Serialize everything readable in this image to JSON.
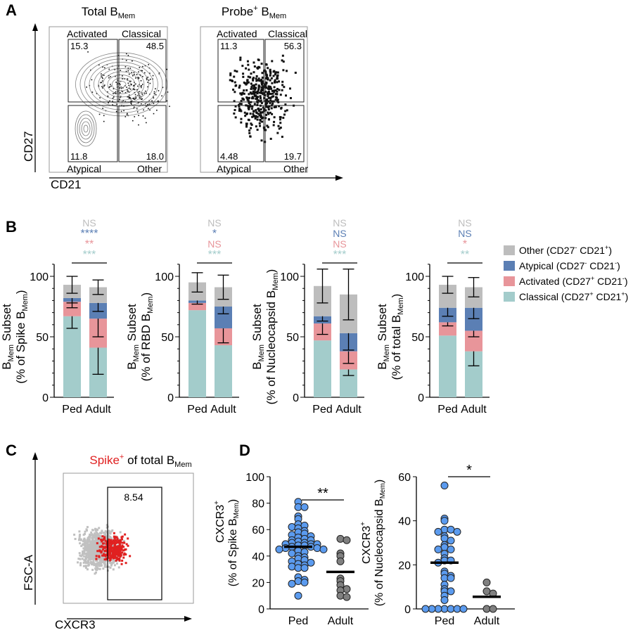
{
  "panel_labels": [
    "A",
    "B",
    "C",
    "D"
  ],
  "panel_a": {
    "plots": [
      {
        "title": "Total B",
        "title_sub": "Mem",
        "gates": {
          "activated": "15.3",
          "classical": "48.5",
          "atypical": "11.8",
          "other": "18.0"
        },
        "style": "contour"
      },
      {
        "title": "Probe",
        "title_sup": "+",
        "title_post": " B",
        "title_sub": "Mem",
        "gates": {
          "activated": "11.3",
          "classical": "56.3",
          "atypical": "4.48",
          "other": "19.7"
        },
        "style": "dot"
      }
    ],
    "gate_names": {
      "activated": "Activated",
      "classical": "Classical",
      "atypical": "Atypical",
      "other": "Other"
    },
    "y_axis": "CD27",
    "x_axis": "CD21"
  },
  "chart_data": [
    {
      "type": "bar",
      "stacked": true,
      "panel": "B",
      "categories": [
        "Ped",
        "Adult"
      ],
      "ylabel_main": "B",
      "ylabel_sub": "Mem",
      "ylabel_post": " Subset",
      "ylabel2": "(% of Spike B",
      "ylabel2_sub": "Mem",
      "ylabel2_post": ")",
      "ylim": [
        0,
        110
      ],
      "yticks": [
        0,
        50,
        100
      ],
      "series": [
        {
          "name": "Classical",
          "values": [
            67,
            41
          ],
          "sd": [
            10,
            22
          ]
        },
        {
          "name": "Activated",
          "values": [
            12,
            24
          ],
          "sd": [
            5,
            15
          ]
        },
        {
          "name": "Atypical",
          "values": [
            3,
            13
          ],
          "sd": [
            4,
            7
          ]
        },
        {
          "name": "Other",
          "values": [
            11,
            13
          ],
          "sd": [
            7,
            6
          ]
        }
      ],
      "significance": [
        {
          "text": "NS",
          "series": "Other"
        },
        {
          "text": "****",
          "series": "Atypical"
        },
        {
          "text": "**",
          "series": "Activated"
        },
        {
          "text": "***",
          "series": "Classical"
        }
      ]
    },
    {
      "type": "bar",
      "stacked": true,
      "panel": "B",
      "categories": [
        "Ped",
        "Adult"
      ],
      "ylabel_main": "B",
      "ylabel_sub": "Mem",
      "ylabel_post": " Subset",
      "ylabel2": "(% of RBD B",
      "ylabel2_sub": "Mem",
      "ylabel2_post": ")",
      "ylim": [
        0,
        110
      ],
      "yticks": [
        0,
        50,
        100
      ],
      "series": [
        {
          "name": "Classical",
          "values": [
            72,
            43
          ],
          "sd": [
            0,
            0
          ]
        },
        {
          "name": "Activated",
          "values": [
            6,
            14
          ],
          "sd": [
            0,
            12
          ]
        },
        {
          "name": "Atypical",
          "values": [
            2,
            18
          ],
          "sd": [
            3,
            6
          ]
        },
        {
          "name": "Other",
          "values": [
            15,
            16
          ],
          "sd": [
            8,
            10
          ]
        }
      ],
      "significance": [
        {
          "text": "NS",
          "series": "Other"
        },
        {
          "text": "*",
          "series": "Atypical"
        },
        {
          "text": "NS",
          "series": "Activated"
        },
        {
          "text": "***",
          "series": "Classical"
        }
      ]
    },
    {
      "type": "bar",
      "stacked": true,
      "panel": "B",
      "categories": [
        "Ped",
        "Adult"
      ],
      "ylabel_main": "B",
      "ylabel_sub": "Mem",
      "ylabel_post": " Subset",
      "ylabel2": "(% of Nucleocapsid B",
      "ylabel2_sub": "Mem",
      "ylabel2_post": ")",
      "ylim": [
        0,
        110
      ],
      "yticks": [
        0,
        50,
        100
      ],
      "series": [
        {
          "name": "Classical",
          "values": [
            47,
            23
          ],
          "sd": [
            0,
            5
          ]
        },
        {
          "name": "Activated",
          "values": [
            14,
            15
          ],
          "sd": [
            9,
            10
          ]
        },
        {
          "name": "Atypical",
          "values": [
            6,
            15
          ],
          "sd": [
            4,
            14
          ]
        },
        {
          "name": "Other",
          "values": [
            25,
            32
          ],
          "sd": [
            14,
            21
          ]
        }
      ],
      "significance": [
        {
          "text": "NS",
          "series": "Other"
        },
        {
          "text": "NS",
          "series": "Atypical"
        },
        {
          "text": "NS",
          "series": "Activated"
        },
        {
          "text": "***",
          "series": "Classical"
        }
      ]
    },
    {
      "type": "bar",
      "stacked": true,
      "panel": "B",
      "categories": [
        "Ped",
        "Adult"
      ],
      "ylabel_main": "B",
      "ylabel_sub": "Mem",
      "ylabel_post": " Subset",
      "ylabel2": "(% of total B",
      "ylabel2_sub": "Mem",
      "ylabel2_post": ")",
      "ylim": [
        0,
        110
      ],
      "yticks": [
        0,
        50,
        100
      ],
      "series": [
        {
          "name": "Classical",
          "values": [
            51,
            38
          ],
          "sd": [
            0,
            12
          ]
        },
        {
          "name": "Activated",
          "values": [
            11,
            17
          ],
          "sd": [
            3,
            5
          ]
        },
        {
          "name": "Atypical",
          "values": [
            12,
            19
          ],
          "sd": [
            7,
            9
          ]
        },
        {
          "name": "Other",
          "values": [
            19,
            17
          ],
          "sd": [
            7,
            8
          ]
        }
      ],
      "significance": [
        {
          "text": "NS",
          "series": "Other"
        },
        {
          "text": "NS",
          "series": "Atypical"
        },
        {
          "text": "*",
          "series": "Activated"
        },
        {
          "text": "**",
          "series": "Classical"
        }
      ]
    },
    {
      "type": "scatter",
      "panel": "D",
      "categories": [
        "Ped",
        "Adult"
      ],
      "ylabel_main": "CXCR3",
      "ylabel_sup": "+",
      "ylabel2": "(% of Spike B",
      "ylabel2_sub": "Mem",
      "ylabel2_post": ")",
      "ylim": [
        0,
        100
      ],
      "yticks": [
        0,
        20,
        40,
        60,
        80,
        100
      ],
      "groups": [
        {
          "name": "Ped",
          "color": "#5b9bef",
          "mean": 47,
          "values": [
            81,
            77,
            77,
            70,
            68,
            64,
            63,
            62,
            61,
            59,
            58,
            57,
            56,
            55,
            54,
            53,
            52,
            52,
            51,
            50,
            50,
            49,
            49,
            49,
            48,
            48,
            47,
            47,
            46,
            46,
            45,
            45,
            44,
            43,
            42,
            40,
            39,
            38,
            37,
            36,
            35,
            34,
            33,
            32,
            31,
            31,
            24,
            22,
            21,
            20,
            19,
            10
          ]
        },
        {
          "name": "Adult",
          "color": "#808080",
          "mean": 28,
          "values": [
            53,
            52,
            42,
            40,
            36,
            23,
            21,
            18,
            15,
            14,
            10,
            9
          ]
        }
      ],
      "significance": "**"
    },
    {
      "type": "scatter",
      "panel": "D",
      "categories": [
        "Ped",
        "Adult"
      ],
      "ylabel_main": "CXCR3",
      "ylabel_sup": "+",
      "ylabel2": "(% of Nucleocapsid B",
      "ylabel2_sub": "Mem",
      "ylabel2_post": ")",
      "ylim": [
        0,
        60
      ],
      "yticks": [
        0,
        20,
        40,
        60
      ],
      "groups": [
        {
          "name": "Ped",
          "color": "#5b9bef",
          "mean": 21,
          "values": [
            56,
            41,
            40,
            36,
            36,
            35,
            35,
            33,
            32,
            31,
            29,
            28,
            27,
            27,
            25,
            23,
            22,
            22,
            21,
            17,
            16,
            15,
            14,
            14,
            11,
            9,
            8,
            8,
            6,
            4,
            0,
            0,
            0,
            0,
            0,
            0,
            0
          ]
        },
        {
          "name": "Adult",
          "color": "#808080",
          "mean": 5.5,
          "values": [
            12,
            8,
            7,
            0,
            0
          ]
        }
      ],
      "significance": "*"
    }
  ],
  "legend": [
    {
      "label": "Other (CD27",
      "sup1": "-",
      "mid": " CD21",
      "sup2": "+",
      "end": ")",
      "color": "#bdbdbd"
    },
    {
      "label": "Atypical (CD27",
      "sup1": "-",
      "mid": " CD21",
      "sup2": "-",
      "end": ")",
      "color": "#5b7fb4"
    },
    {
      "label": "Activated (CD27",
      "sup1": "+",
      "mid": " CD21",
      "sup2": "-",
      "end": ")",
      "color": "#e8959a"
    },
    {
      "label": "Classical (CD27",
      "sup1": "+",
      "mid": " CD21",
      "sup2": "+",
      "end": ")",
      "color": "#a3cccb"
    }
  ],
  "panel_c": {
    "title": "Spike",
    "title_sup": "+",
    "title_post": " of total B",
    "title_sub": "Mem",
    "gate_value": "8.54",
    "y_axis": "FSC-A",
    "x_axis": "CXCR3",
    "highlight_color": "#e02020",
    "background_color": "#c0c0c0"
  },
  "colors": {
    "Classical": "#a3cccb",
    "Activated": "#e8959a",
    "Atypical": "#5b7fb4",
    "Other": "#bdbdbd",
    "title_red": "#e02020"
  }
}
